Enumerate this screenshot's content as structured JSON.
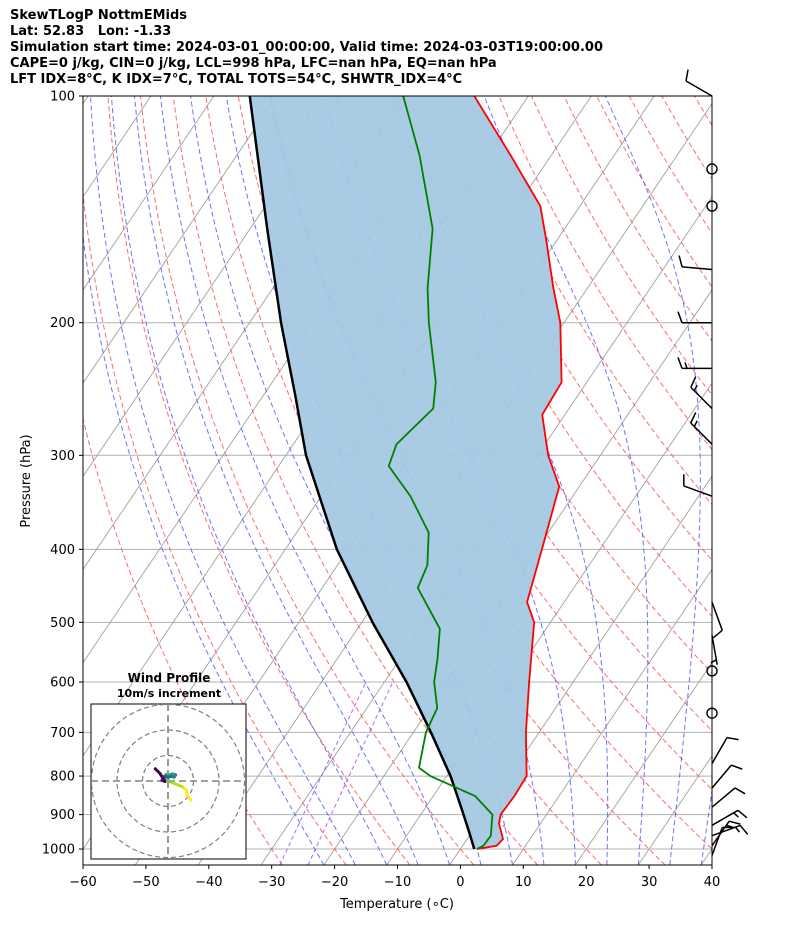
{
  "header": {
    "line1": "SkewTLogP NottmEMids",
    "line2": "Lat: 52.83   Lon: -1.33",
    "line3": "Simulation start time: 2024-03-01_00:00:00, Valid time: 2024-03-03T19:00:00.00",
    "line4": "CAPE=0 j/kg, CIN=0 j/kg, LCL=998 hPa, LFC=nan hPa, EQ=nan hPa",
    "line5": "LFT IDX=8°C, K IDX=7°C, TOTAL TOTS=54°C, SHWTR_IDX=4°C"
  },
  "chart_data": {
    "type": "skewt",
    "xlabel": "Temperature (∘C)",
    "ylabel": "Pressure (hPa)",
    "xlim": [
      -60,
      40
    ],
    "ylim": [
      1050,
      100
    ],
    "x_ticks": [
      -60,
      -50,
      -40,
      -30,
      -20,
      -10,
      0,
      10,
      20,
      30,
      40
    ],
    "x_tick_labels": [
      "−60",
      "−50",
      "−40",
      "−30",
      "−20",
      "−10",
      "0",
      "10",
      "20",
      "30",
      "40"
    ],
    "p_ticks": [
      1000,
      900,
      800,
      700,
      600,
      500,
      400,
      300,
      200,
      100
    ],
    "p_tick_labels": [
      "1000",
      "900",
      "800",
      "700",
      "600",
      "500",
      "400",
      "300",
      "200",
      "100"
    ],
    "colors": {
      "temperature": "#ff0000",
      "dewpoint": "#008000",
      "parcel": "#000000",
      "cape_fill": "#a4c8e1",
      "dry_adiabats": "#ff5a5a",
      "moist_adiabats": "#5a64ff",
      "mixing_ratio": "#a040ff",
      "isotherms": "#a0a0a0"
    },
    "temperature": [
      {
        "p": 1000,
        "t": 2.7
      },
      {
        "p": 990,
        "t": 5.4
      },
      {
        "p": 970,
        "t": 5.7
      },
      {
        "p": 925,
        "t": 3.4
      },
      {
        "p": 900,
        "t": 2.7
      },
      {
        "p": 850,
        "t": 2.9
      },
      {
        "p": 800,
        "t": 2.7
      },
      {
        "p": 700,
        "t": -2.1
      },
      {
        "p": 600,
        "t": -7.0
      },
      {
        "p": 500,
        "t": -12.6
      },
      {
        "p": 470,
        "t": -15.9
      },
      {
        "p": 400,
        "t": -19.2
      },
      {
        "p": 330,
        "t": -23.2
      },
      {
        "p": 300,
        "t": -28.3
      },
      {
        "p": 265,
        "t": -33.6
      },
      {
        "p": 240,
        "t": -34.0
      },
      {
        "p": 200,
        "t": -40.6
      },
      {
        "p": 180,
        "t": -45.4
      },
      {
        "p": 155,
        "t": -51.8
      },
      {
        "p": 140,
        "t": -56.3
      },
      {
        "p": 120,
        "t": -66.4
      },
      {
        "p": 100,
        "t": -78.6
      }
    ],
    "dewpoint": [
      {
        "p": 1000,
        "t": 2.6
      },
      {
        "p": 990,
        "t": 3.3
      },
      {
        "p": 960,
        "t": 3.4
      },
      {
        "p": 900,
        "t": 1.4
      },
      {
        "p": 850,
        "t": -3.4
      },
      {
        "p": 800,
        "t": -12.6
      },
      {
        "p": 780,
        "t": -15.3
      },
      {
        "p": 700,
        "t": -18.0
      },
      {
        "p": 650,
        "t": -18.8
      },
      {
        "p": 600,
        "t": -22.1
      },
      {
        "p": 560,
        "t": -24.0
      },
      {
        "p": 510,
        "t": -26.9
      },
      {
        "p": 450,
        "t": -34.8
      },
      {
        "p": 420,
        "t": -35.7
      },
      {
        "p": 380,
        "t": -39.0
      },
      {
        "p": 340,
        "t": -45.8
      },
      {
        "p": 310,
        "t": -52.5
      },
      {
        "p": 290,
        "t": -53.6
      },
      {
        "p": 260,
        "t": -51.6
      },
      {
        "p": 240,
        "t": -54.0
      },
      {
        "p": 200,
        "t": -61.5
      },
      {
        "p": 180,
        "t": -65.4
      },
      {
        "p": 150,
        "t": -71.0
      },
      {
        "p": 120,
        "t": -80.9
      },
      {
        "p": 100,
        "t": -89.9
      }
    ],
    "parcel": [
      {
        "p": 1000,
        "t": 2.2
      },
      {
        "p": 950,
        "t": -0.4
      },
      {
        "p": 900,
        "t": -3.2
      },
      {
        "p": 850,
        "t": -6.2
      },
      {
        "p": 800,
        "t": -9.4
      },
      {
        "p": 700,
        "t": -17.2
      },
      {
        "p": 600,
        "t": -26.5
      },
      {
        "p": 500,
        "t": -38.3
      },
      {
        "p": 400,
        "t": -51.8
      },
      {
        "p": 300,
        "t": -66.8
      },
      {
        "p": 250,
        "t": -74.9
      },
      {
        "p": 200,
        "t": -85.0
      },
      {
        "p": 150,
        "t": -97.3
      },
      {
        "p": 100,
        "t": -114.3
      }
    ],
    "wind_barbs": [
      {
        "p": 100,
        "speed_kt": 10,
        "dir": 300
      },
      {
        "p": 125,
        "speed_kt": 0,
        "dir": 0
      },
      {
        "p": 140,
        "speed_kt": 0,
        "dir": 0
      },
      {
        "p": 170,
        "speed_kt": 10,
        "dir": 275
      },
      {
        "p": 200,
        "speed_kt": 10,
        "dir": 270
      },
      {
        "p": 230,
        "speed_kt": 15,
        "dir": 270
      },
      {
        "p": 260,
        "speed_kt": 15,
        "dir": 315
      },
      {
        "p": 290,
        "speed_kt": 15,
        "dir": 315
      },
      {
        "p": 340,
        "speed_kt": 10,
        "dir": 290
      },
      {
        "p": 470,
        "speed_kt": 10,
        "dir": 160
      },
      {
        "p": 520,
        "speed_kt": 5,
        "dir": 170
      },
      {
        "p": 580,
        "speed_kt": 0,
        "dir": 0
      },
      {
        "p": 660,
        "speed_kt": 0,
        "dir": 0
      },
      {
        "p": 770,
        "speed_kt": 10,
        "dir": 30
      },
      {
        "p": 830,
        "speed_kt": 10,
        "dir": 40
      },
      {
        "p": 880,
        "speed_kt": 10,
        "dir": 50
      },
      {
        "p": 930,
        "speed_kt": 15,
        "dir": 60
      },
      {
        "p": 960,
        "speed_kt": 15,
        "dir": 70
      },
      {
        "p": 990,
        "speed_kt": 15,
        "dir": 35
      },
      {
        "p": 1020,
        "speed_kt": 10,
        "dir": 20
      }
    ],
    "hodograph": {
      "title": "Wind Profile",
      "subtitle": "10m/s increment",
      "rings_ms": [
        10,
        20,
        30
      ],
      "points": [
        {
          "u": 9.0,
          "v": -7.5
        },
        {
          "u": 7.5,
          "v": -5.5
        },
        {
          "u": 7.2,
          "v": -3.5
        },
        {
          "u": 5.5,
          "v": -2.2
        },
        {
          "u": 3.0,
          "v": -1.2
        },
        {
          "u": 1.0,
          "v": -0.3
        },
        {
          "u": -0.5,
          "v": 0.8
        },
        {
          "u": -1.2,
          "v": 2.0
        },
        {
          "u": -0.6,
          "v": 2.6
        },
        {
          "u": 0.8,
          "v": 2.4
        },
        {
          "u": 1.8,
          "v": 2.8
        },
        {
          "u": 3.0,
          "v": 2.4
        },
        {
          "u": 2.4,
          "v": 1.5
        },
        {
          "u": 1.0,
          "v": 1.8
        },
        {
          "u": 0.0,
          "v": 1.4
        },
        {
          "u": -1.0,
          "v": 2.0
        },
        {
          "u": -1.8,
          "v": 1.5
        },
        {
          "u": -1.5,
          "v": 0.4
        },
        {
          "u": -2.4,
          "v": 0.2
        },
        {
          "u": -1.2,
          "v": -0.2
        },
        {
          "u": -3.2,
          "v": 3.0
        },
        {
          "u": -5.0,
          "v": 4.8
        }
      ]
    }
  }
}
